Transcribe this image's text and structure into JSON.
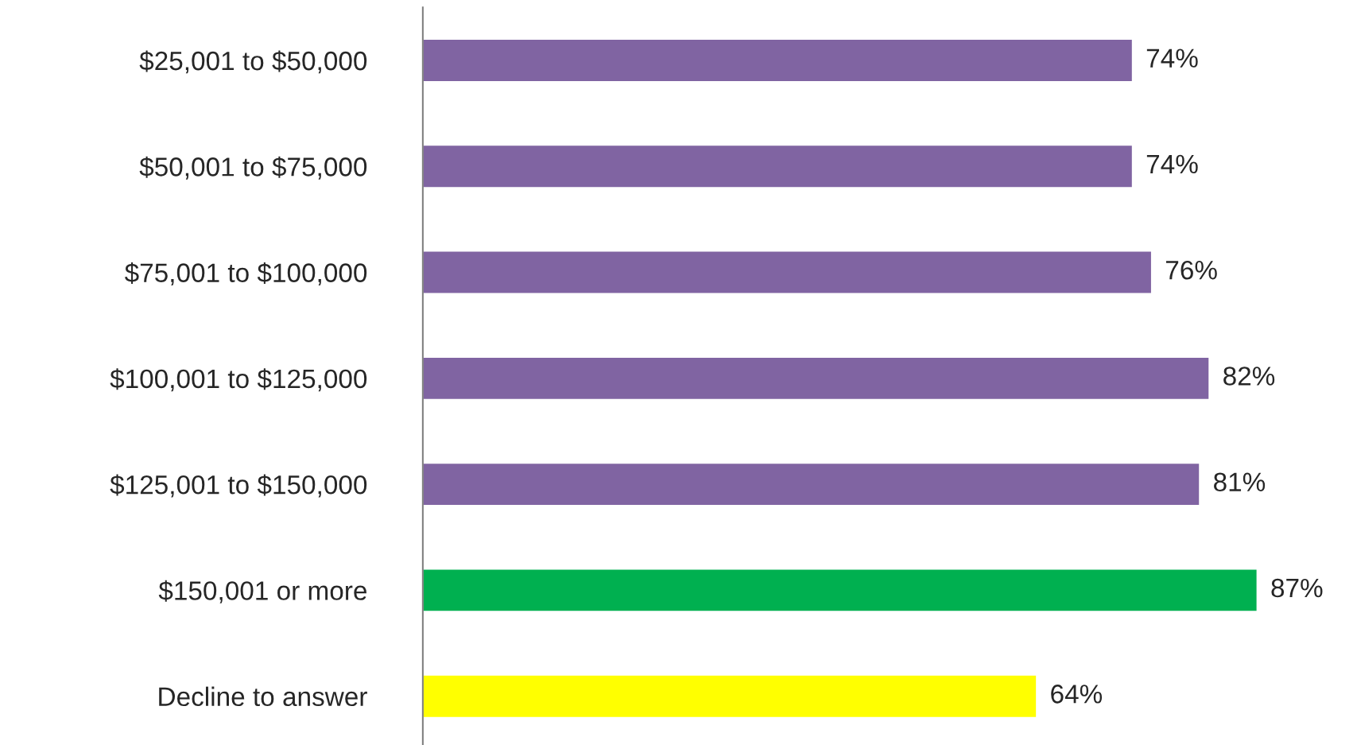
{
  "chart_data": {
    "type": "bar",
    "orientation": "horizontal",
    "categories": [
      "$25,001 to $50,000",
      "$50,001 to $75,000",
      "$75,001 to $100,000",
      "$100,001 to $125,000",
      "$125,001 to $150,000",
      "$150,001 or more",
      "Decline to answer"
    ],
    "values": [
      74,
      74,
      76,
      82,
      81,
      87,
      64
    ],
    "colors": [
      "#8064a2",
      "#8064a2",
      "#8064a2",
      "#8064a2",
      "#8064a2",
      "#00b050",
      "#ffff00"
    ],
    "value_labels": [
      "74%",
      "74%",
      "76%",
      "82%",
      "81%",
      "87%",
      "64%"
    ],
    "tick_labels": "y",
    "grid": false,
    "legend": false
  }
}
